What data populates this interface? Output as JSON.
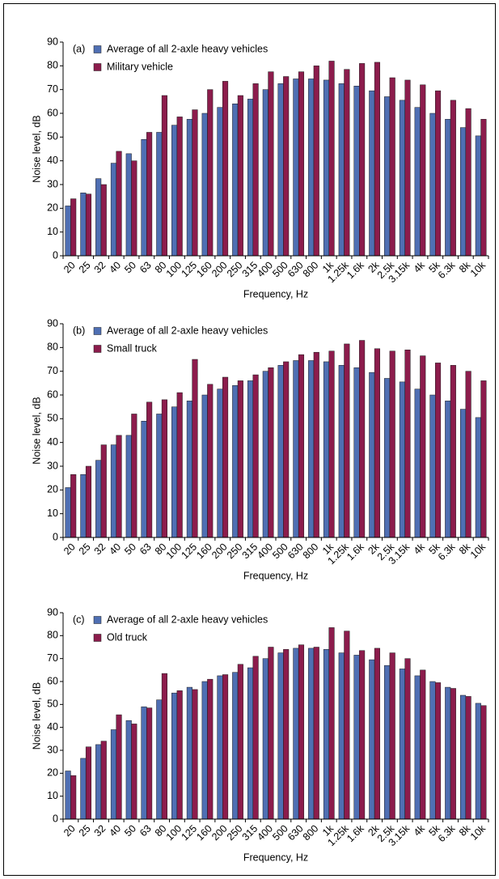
{
  "chart_data": [
    {
      "type": "bar",
      "title": "(a)",
      "xlabel": "Frequency,  Hz",
      "ylabel": "Noise level,  dB",
      "categories": [
        "20",
        "25",
        "32",
        "40",
        "50",
        "63",
        "80",
        "100",
        "125",
        "160",
        "200",
        "250",
        "315",
        "400",
        "500",
        "630",
        "800",
        "1k",
        "1.25k",
        "1.6k",
        "2k",
        "2.5k",
        "3.15k",
        "4k",
        "5k",
        "6.3k",
        "8k",
        "10k"
      ],
      "series": [
        {
          "name": "Average of all 2-axle heavy vehicles",
          "color": "#4f6fb3",
          "values": [
            21,
            26.5,
            32.5,
            39,
            43,
            49,
            52,
            55,
            57.5,
            60,
            62.5,
            64,
            66,
            70,
            72.5,
            74.5,
            74.5,
            74,
            72.5,
            71.5,
            69.5,
            67,
            65.5,
            62.5,
            60,
            57.5,
            54,
            50.5
          ]
        },
        {
          "name": "Military vehicle",
          "color": "#8c1c4c",
          "values": [
            24,
            26,
            30,
            44,
            40,
            52,
            67.5,
            58.5,
            61.5,
            70,
            73.5,
            67.5,
            72.5,
            77.5,
            75.5,
            77.5,
            80,
            82,
            78.5,
            81,
            81.5,
            75,
            74,
            72,
            69.5,
            65.5,
            62,
            57.5
          ]
        }
      ],
      "ylim": [
        0,
        90
      ],
      "yticks": [
        0,
        10,
        20,
        30,
        40,
        50,
        60,
        70,
        80,
        90
      ],
      "grid": false
    },
    {
      "type": "bar",
      "title": "(b)",
      "xlabel": "Frequency,  Hz",
      "ylabel": "Noise level,  dB",
      "categories": [
        "20",
        "25",
        "32",
        "40",
        "50",
        "63",
        "80",
        "100",
        "125",
        "160",
        "200",
        "250",
        "315",
        "400",
        "500",
        "630",
        "800",
        "1k",
        "1.25k",
        "1.6k",
        "2k",
        "2.5k",
        "3.15k",
        "4k",
        "5k",
        "6.3k",
        "8k",
        "10k"
      ],
      "series": [
        {
          "name": "Average of all 2-axle heavy vehicles",
          "color": "#4f6fb3",
          "values": [
            21,
            26.5,
            32.5,
            39,
            43,
            49,
            52,
            55,
            57.5,
            60,
            62.5,
            64,
            66,
            70,
            72.5,
            74.5,
            74.5,
            74,
            72.5,
            71.5,
            69.5,
            67,
            65.5,
            62.5,
            60,
            57.5,
            54,
            50.5
          ]
        },
        {
          "name": "Small truck",
          "color": "#8c1c4c",
          "values": [
            26.5,
            30,
            39,
            43,
            52,
            57,
            58,
            61,
            75,
            64.5,
            67.5,
            66,
            68.5,
            71.5,
            74,
            77,
            78,
            78.5,
            81.5,
            83,
            79.5,
            78.5,
            79,
            76.5,
            73.5,
            72.5,
            70,
            66
          ]
        }
      ],
      "ylim": [
        0,
        90
      ],
      "yticks": [
        0,
        10,
        20,
        30,
        40,
        50,
        60,
        70,
        80,
        90
      ],
      "grid": false
    },
    {
      "type": "bar",
      "title": "(c)",
      "xlabel": "Frequency,  Hz",
      "ylabel": "Noise level,  dB",
      "categories": [
        "20",
        "25",
        "32",
        "40",
        "50",
        "63",
        "80",
        "100",
        "125",
        "160",
        "200",
        "250",
        "315",
        "400",
        "500",
        "630",
        "800",
        "1k",
        "1.25k",
        "1.6k",
        "2k",
        "2.5k",
        "3.15k",
        "4k",
        "5k",
        "6.3k",
        "8k",
        "10k"
      ],
      "series": [
        {
          "name": "Average of all 2-axle heavy vehicles",
          "color": "#4f6fb3",
          "values": [
            21,
            26.5,
            32.5,
            39,
            43,
            49,
            52,
            55,
            57.5,
            60,
            62.5,
            64,
            66,
            70,
            72.5,
            74.5,
            74.5,
            74,
            72.5,
            71.5,
            69.5,
            67,
            65.5,
            62.5,
            60,
            57.5,
            54,
            50.5
          ]
        },
        {
          "name": "Old truck",
          "color": "#8c1c4c",
          "values": [
            19,
            31.5,
            34,
            45.5,
            41.5,
            48.5,
            63.5,
            56,
            56.5,
            61,
            63,
            67.5,
            71,
            75,
            74,
            76,
            75,
            83.5,
            82,
            73.5,
            74.5,
            72.5,
            70,
            65,
            59.5,
            57,
            53.5,
            49.5
          ]
        }
      ],
      "ylim": [
        0,
        90
      ],
      "yticks": [
        0,
        10,
        20,
        30,
        40,
        50,
        60,
        70,
        80,
        90
      ],
      "grid": false
    }
  ]
}
